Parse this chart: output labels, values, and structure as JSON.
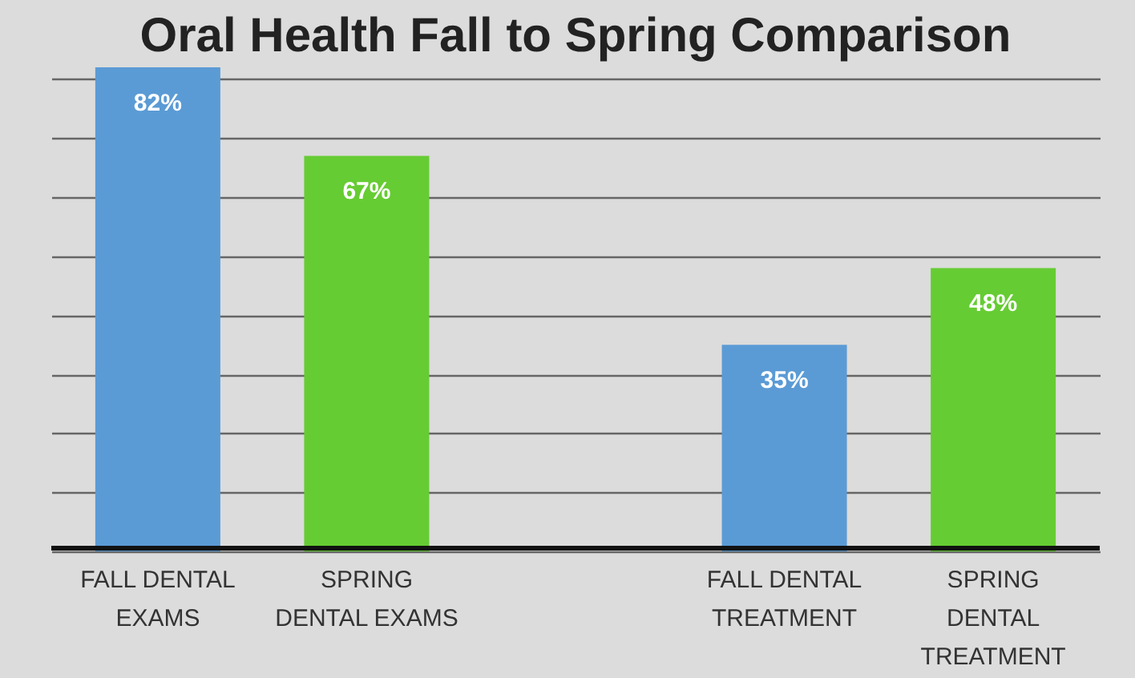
{
  "chart_data": {
    "type": "bar",
    "title": "Oral Health Fall to Spring Comparison",
    "categories": [
      "FALL DENTAL EXAMS",
      "SPRING DENTAL EXAMS",
      null,
      "FALL DENTAL TREATMENT",
      "SPRING DENTAL TREATMENT"
    ],
    "values": [
      82,
      67,
      null,
      35,
      48
    ],
    "colors": [
      "#5b9bd5",
      "#66cc33",
      "#999999",
      "#5b9bd5",
      "#66cc33"
    ],
    "value_labels": [
      "82%",
      "67%",
      null,
      "35%",
      "48%"
    ],
    "tick_labels": "x",
    "grid": "y"
  }
}
